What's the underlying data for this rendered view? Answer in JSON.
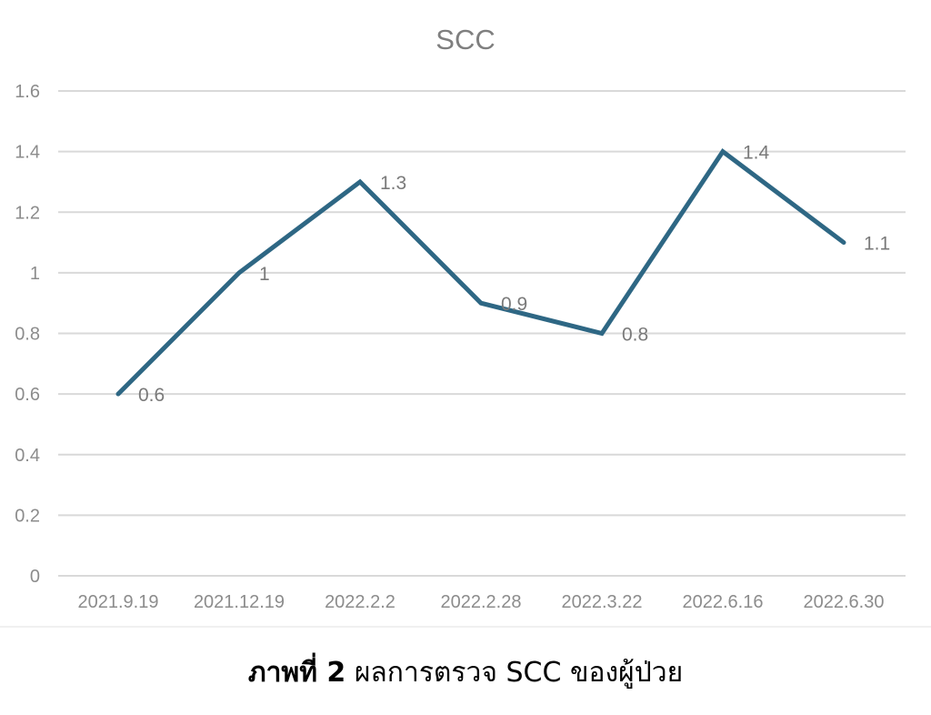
{
  "chart_data": {
    "type": "line",
    "title": "SCC",
    "categories": [
      "2021.9.19",
      "2021.12.19",
      "2022.2.2",
      "2022.2.28",
      "2022.3.22",
      "2022.6.16",
      "2022.6.30"
    ],
    "series": [
      {
        "values": [
          0.6,
          1,
          1.3,
          0.9,
          0.8,
          1.4,
          1.1
        ],
        "data_labels": [
          "0.6",
          "1",
          "1.3",
          "0.9",
          "0.8",
          "1.4",
          "1.1"
        ],
        "color": "#2e6784"
      }
    ],
    "ylim": [
      0,
      1.6
    ],
    "yticks": [
      "0",
      "0.2",
      "0.4",
      "0.6",
      "0.8",
      "1",
      "1.2",
      "1.4",
      "1.6"
    ],
    "ytick_values": [
      0,
      0.2,
      0.4,
      0.6,
      0.8,
      1,
      1.2,
      1.4,
      1.6
    ],
    "grid": true,
    "legend": "none"
  },
  "caption": {
    "label": "ภาพที่ 2",
    "text": " ผลการตรวจ SCC ของผู้ป่วย"
  }
}
